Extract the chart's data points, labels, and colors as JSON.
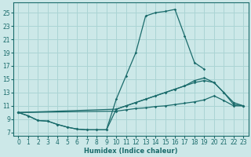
{
  "xlabel": "Humidex (Indice chaleur)",
  "xlim": [
    -0.5,
    23.5
  ],
  "ylim": [
    6.5,
    26.5
  ],
  "yticks": [
    7,
    9,
    11,
    13,
    15,
    17,
    19,
    21,
    23,
    25
  ],
  "xticks": [
    0,
    1,
    2,
    3,
    4,
    5,
    6,
    7,
    8,
    9,
    10,
    11,
    12,
    13,
    14,
    15,
    16,
    17,
    18,
    19,
    20,
    21,
    22,
    23
  ],
  "bg_color": "#cce8e8",
  "line_color": "#1a6b6b",
  "grid_color": "#aad4d4",
  "lines": [
    {
      "x": [
        0,
        1,
        2,
        3,
        4,
        5,
        6,
        7,
        8,
        9,
        10,
        11,
        12,
        13,
        14,
        15,
        16,
        17,
        18,
        19
      ],
      "y": [
        10,
        9.5,
        8.8,
        8.7,
        8.2,
        7.8,
        7.5,
        7.4,
        7.4,
        7.4,
        12.0,
        15.5,
        19.0,
        24.5,
        25.0,
        25.2,
        25.5,
        21.5,
        17.5,
        16.5
      ]
    },
    {
      "x": [
        0,
        10,
        11,
        12,
        13,
        14,
        15,
        16,
        17,
        18,
        19,
        20,
        21,
        22,
        23
      ],
      "y": [
        10,
        10.5,
        11.0,
        11.5,
        12.0,
        12.5,
        13.0,
        13.5,
        14.0,
        14.8,
        15.2,
        14.5,
        13.0,
        11.2,
        11.0
      ]
    },
    {
      "x": [
        0,
        10,
        11,
        12,
        13,
        14,
        15,
        16,
        17,
        18,
        19,
        20,
        21,
        22,
        23
      ],
      "y": [
        10,
        10.2,
        10.4,
        10.6,
        10.7,
        10.9,
        11.0,
        11.2,
        11.4,
        11.6,
        11.9,
        12.5,
        11.8,
        11.0,
        11.0
      ]
    },
    {
      "x": [
        0,
        1,
        2,
        3,
        4,
        5,
        6,
        7,
        8,
        9,
        10,
        11,
        12,
        13,
        14,
        15,
        16,
        17,
        18,
        19,
        20,
        21,
        22,
        23
      ],
      "y": [
        10,
        9.5,
        8.8,
        8.7,
        8.2,
        7.8,
        7.5,
        7.4,
        7.4,
        7.4,
        10.5,
        11.0,
        11.5,
        12.0,
        12.5,
        13.0,
        13.5,
        14.0,
        14.5,
        14.8,
        14.5,
        13.0,
        11.5,
        11.0
      ]
    }
  ]
}
